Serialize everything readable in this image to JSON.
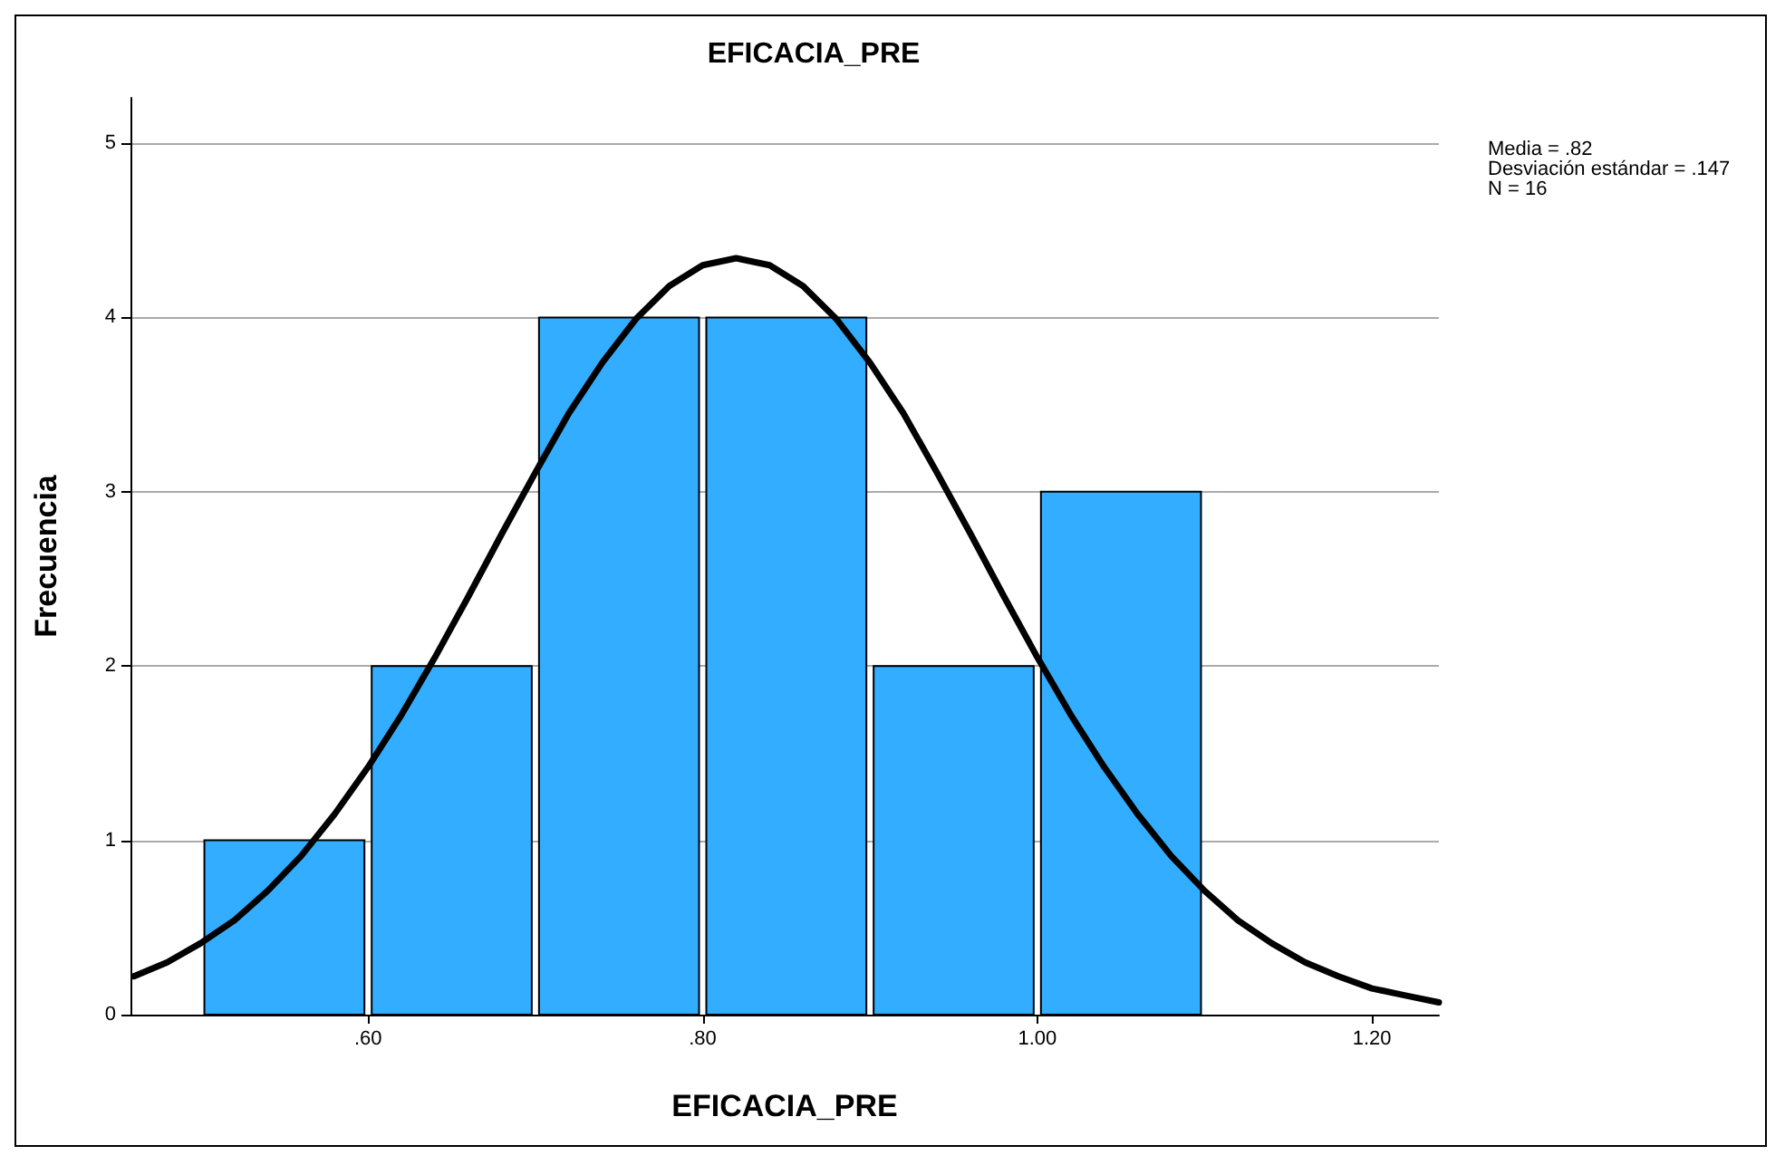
{
  "chart_data": {
    "type": "histogram",
    "title": "EFICACIA_PRE",
    "xlabel": "EFICACIA_PRE",
    "ylabel": "Frecuencia",
    "bins": [
      0.5,
      0.6,
      0.7,
      0.8,
      0.9,
      1.0,
      1.1
    ],
    "values": [
      1,
      2,
      4,
      4,
      2,
      3
    ],
    "color": "#33adff",
    "series": [
      {
        "type": "line",
        "color": "#000000",
        "x": [
          0.46,
          0.48,
          0.5,
          0.52,
          0.54,
          0.56,
          0.58,
          0.6,
          0.62,
          0.64,
          0.66,
          0.68,
          0.7,
          0.72,
          0.74,
          0.76,
          0.78,
          0.8,
          0.82,
          0.84,
          0.86,
          0.88,
          0.9,
          0.92,
          0.94,
          0.96,
          0.98,
          1.0,
          1.02,
          1.04,
          1.06,
          1.08,
          1.1,
          1.12,
          1.14,
          1.16,
          1.18,
          1.2,
          1.22,
          1.24
        ],
        "values": [
          0.22,
          0.3,
          0.41,
          0.54,
          0.71,
          0.91,
          1.15,
          1.42,
          1.72,
          2.05,
          2.4,
          2.76,
          3.11,
          3.45,
          3.74,
          3.99,
          4.18,
          4.3,
          4.34,
          4.3,
          4.18,
          3.99,
          3.74,
          3.45,
          3.11,
          2.76,
          2.4,
          2.05,
          1.72,
          1.42,
          1.15,
          0.91,
          0.71,
          0.54,
          0.41,
          0.3,
          0.22,
          0.15,
          0.11,
          0.07
        ]
      }
    ],
    "xlim": [
      0.458,
      1.24
    ],
    "xticks": [
      {
        "value": 0.6,
        "label": ".60"
      },
      {
        "value": 0.8,
        "label": ".80"
      },
      {
        "value": 1.0,
        "label": "1.00"
      },
      {
        "value": 1.2,
        "label": "1.20"
      }
    ],
    "ylim": [
      0,
      5.26
    ],
    "yticks": [
      0,
      1,
      2,
      3,
      4,
      5
    ],
    "grid": "y",
    "marker": "none",
    "line_style": "solid",
    "annotations": [
      "Media = .82",
      "Desviación estándar = .147",
      "N = 16"
    ]
  }
}
